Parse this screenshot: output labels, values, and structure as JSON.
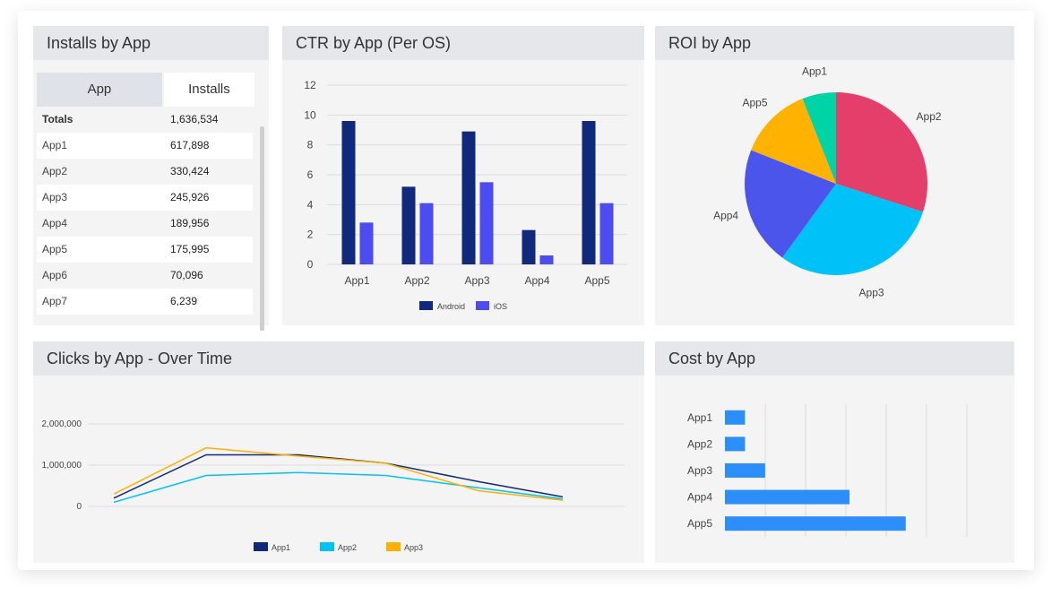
{
  "installs": {
    "title": "Installs by App",
    "columns": [
      "App",
      "Installs"
    ],
    "rows": [
      {
        "app": "Totals",
        "installs": "1,636,534"
      },
      {
        "app": "App1",
        "installs": "617,898"
      },
      {
        "app": "App2",
        "installs": "330,424"
      },
      {
        "app": "App3",
        "installs": "245,926"
      },
      {
        "app": "App4",
        "installs": "189,956"
      },
      {
        "app": "App5",
        "installs": "175,995"
      },
      {
        "app": "App6",
        "installs": "70,096"
      },
      {
        "app": "App7",
        "installs": "6,239"
      }
    ]
  },
  "ctr": {
    "title": "CTR by App (Per OS)"
  },
  "roi": {
    "title": "ROI by App"
  },
  "clicks": {
    "title": "Clicks by App - Over Time"
  },
  "cost": {
    "title": "Cost by App"
  },
  "chart_data": [
    {
      "type": "table",
      "title": "Installs by App",
      "columns": [
        "App",
        "Installs"
      ],
      "rows": [
        [
          "Totals",
          1636534
        ],
        [
          "App1",
          617898
        ],
        [
          "App2",
          330424
        ],
        [
          "App3",
          245926
        ],
        [
          "App4",
          189956
        ],
        [
          "App5",
          175995
        ],
        [
          "App6",
          70096
        ],
        [
          "App7",
          6239
        ]
      ]
    },
    {
      "type": "bar",
      "title": "CTR by App (Per OS)",
      "categories": [
        "App1",
        "App2",
        "App3",
        "App4",
        "App5"
      ],
      "series": [
        {
          "name": "Android",
          "color": "#10297a",
          "values": [
            9.6,
            5.2,
            8.9,
            2.3,
            9.6
          ]
        },
        {
          "name": "iOS",
          "color": "#4c4cf0",
          "values": [
            2.8,
            4.1,
            5.5,
            0.6,
            4.1
          ]
        }
      ],
      "yticks": [
        0,
        2,
        4,
        6,
        8,
        10,
        12
      ],
      "ylim": [
        0,
        12
      ],
      "grid": true,
      "legend": "bottom"
    },
    {
      "type": "pie",
      "title": "ROI by App",
      "slices": [
        {
          "label": "App2",
          "value": 30,
          "color": "#e43e6a"
        },
        {
          "label": "App3",
          "value": 30,
          "color": "#00c2f8"
        },
        {
          "label": "App4",
          "value": 21,
          "color": "#4b55ec"
        },
        {
          "label": "App5",
          "value": 13,
          "color": "#ffb300"
        },
        {
          "label": "App1",
          "value": 6,
          "color": "#00d4a6"
        }
      ]
    },
    {
      "type": "line",
      "title": "Clicks by App - Over Time",
      "x": [
        1,
        2,
        3,
        4,
        5,
        6
      ],
      "series": [
        {
          "name": "App1",
          "color": "#10297a",
          "values": [
            200000,
            1250000,
            1250000,
            1050000,
            600000,
            230000
          ]
        },
        {
          "name": "App2",
          "color": "#00c2f8",
          "values": [
            100000,
            750000,
            820000,
            750000,
            450000,
            180000
          ]
        },
        {
          "name": "App3",
          "color": "#ffb000",
          "values": [
            300000,
            1420000,
            1220000,
            1050000,
            380000,
            150000
          ]
        }
      ],
      "yticks": [
        0,
        1000000,
        2000000
      ],
      "ytick_labels": [
        "0",
        "1,000,000",
        "2,000,000"
      ],
      "ylim": [
        0,
        2000000
      ],
      "grid": true,
      "legend": "bottom"
    },
    {
      "type": "bar",
      "orientation": "horizontal",
      "title": "Cost by App",
      "categories": [
        "App1",
        "App2",
        "App3",
        "App4",
        "App5"
      ],
      "values": [
        5,
        5,
        10,
        31,
        45
      ],
      "xlim": [
        0,
        60
      ],
      "color": "#2c8ef8",
      "grid": true
    }
  ]
}
